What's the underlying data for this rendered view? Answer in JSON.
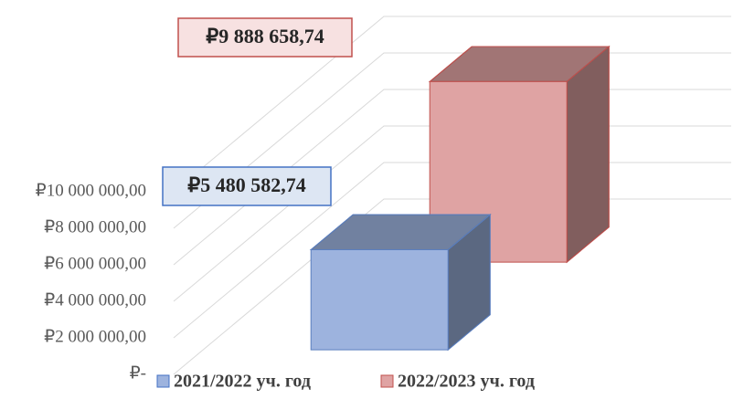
{
  "chart_data": {
    "type": "bar3d",
    "series": [
      {
        "name": "2021/2022 уч. год",
        "color": "#9db3de",
        "values": [
          5480582.74
        ],
        "value_labels": [
          "₽5 480 582,74"
        ]
      },
      {
        "name": "2022/2023 уч. год",
        "color": "#dfa3a3",
        "values": [
          9888658.74
        ],
        "value_labels": [
          "₽9 888 658,74"
        ]
      }
    ],
    "ylim": [
      0,
      10000000
    ],
    "yticks": [
      {
        "value": 0,
        "label": "₽-"
      },
      {
        "value": 2000000,
        "label": "₽2 000 000,00"
      },
      {
        "value": 4000000,
        "label": "₽4 000 000,00"
      },
      {
        "value": 6000000,
        "label": "₽6 000 000,00"
      },
      {
        "value": 8000000,
        "label": "₽8 000 000,00"
      },
      {
        "value": 10000000,
        "label": "₽10 000 000,00"
      }
    ],
    "grid": true,
    "legend": "bottom"
  }
}
